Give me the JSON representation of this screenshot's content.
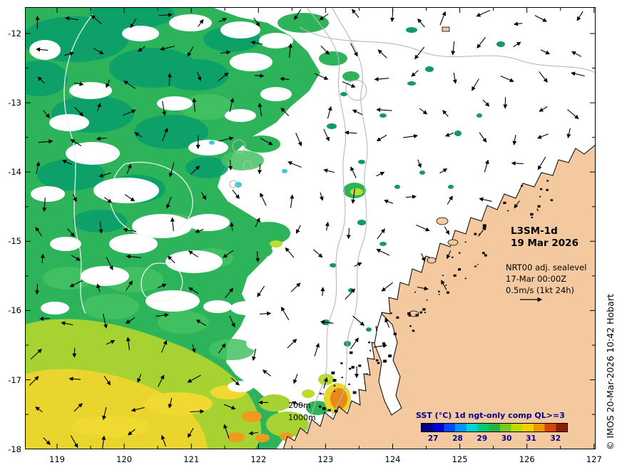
{
  "map": {
    "title": {
      "product": "L3SM-1d",
      "date": "19 Mar 2026"
    },
    "annotation": {
      "line1": "NRT00 adj. sealevel",
      "line2": "17-Mar 00:00Z",
      "line3": "0.5m/s (1kt 24h)"
    },
    "contour_labels": {
      "shallow": "200m",
      "deep": "1000m"
    },
    "credit": "© IMOS 20-Mar-2026 10:42 Hobart"
  },
  "axes": {
    "x_tick_labels": [
      "119",
      "120",
      "121",
      "122",
      "123",
      "124",
      "125",
      "126",
      "127"
    ],
    "y_tick_labels": [
      "-12",
      "-13",
      "-14",
      "-15",
      "-16",
      "-17",
      "-18"
    ]
  },
  "colorbar": {
    "title": "SST (°C) 1d ngt-only comp QL>=3",
    "tick_labels": [
      "27",
      "28",
      "29",
      "30",
      "31",
      "32"
    ],
    "range": [
      26.5,
      32.5
    ],
    "colors": [
      "#000082",
      "#0000d0",
      "#0048ff",
      "#0096ff",
      "#00d2d2",
      "#00c878",
      "#28b43c",
      "#78c81e",
      "#bedc00",
      "#f0d200",
      "#f09600",
      "#d24800",
      "#8c1e00"
    ]
  },
  "colors": {
    "land": "#f5c9a0",
    "sea": "#ffffff",
    "sst_green": "#2db35a",
    "contour_gray": "#b8b8b8",
    "arrow": "#000000"
  }
}
